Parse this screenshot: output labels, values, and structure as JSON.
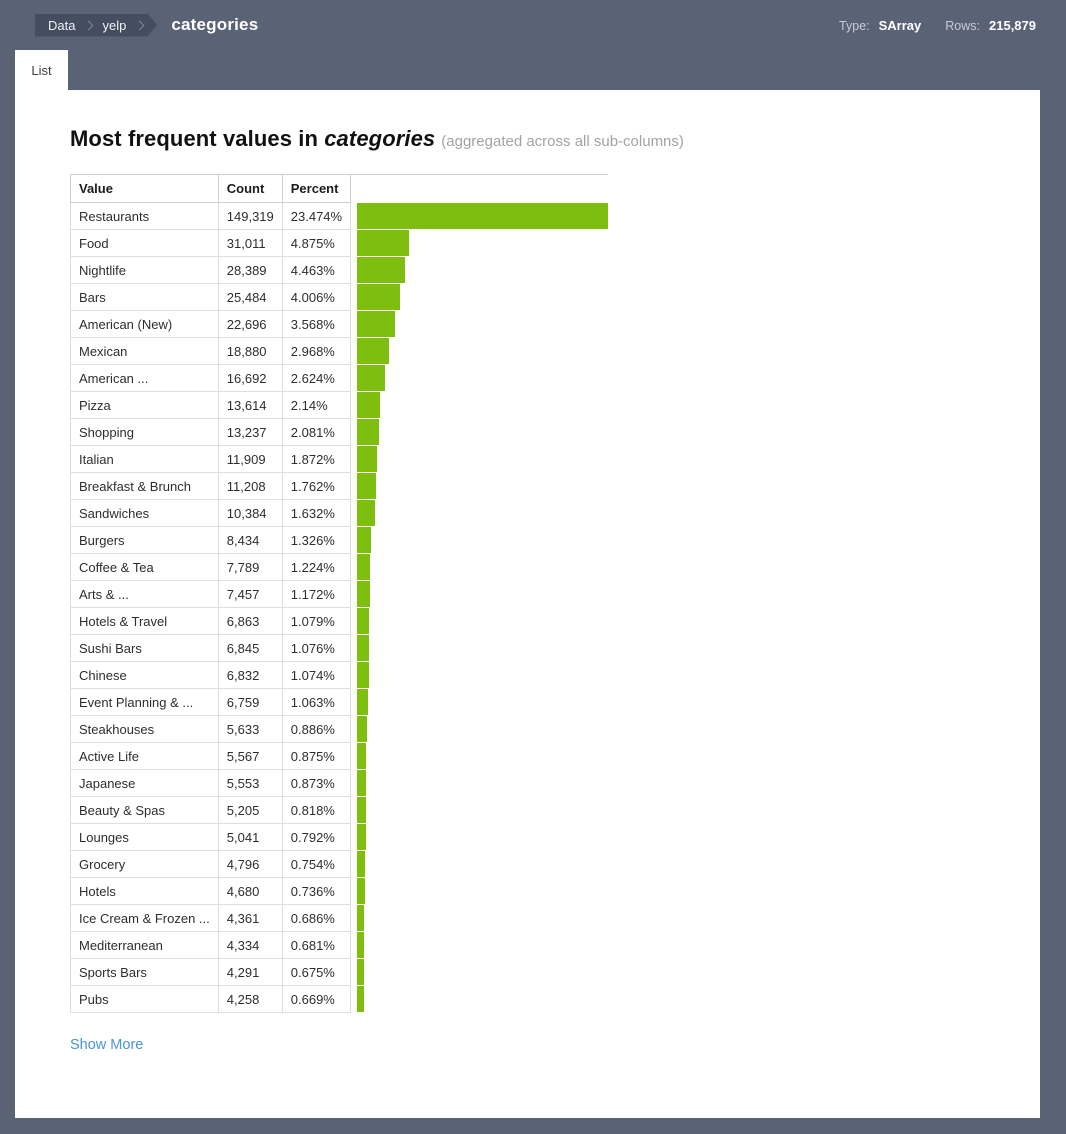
{
  "header": {
    "breadcrumbs": [
      "Data",
      "yelp"
    ],
    "current": "categories",
    "type_label": "Type:",
    "type_value": "SArray",
    "rows_label": "Rows:",
    "rows_value": "215,879"
  },
  "tabs": [
    {
      "label": "List"
    }
  ],
  "main": {
    "title_prefix": "Most frequent values in ",
    "title_column": "categories",
    "title_note": "(aggregated across all sub-columns)",
    "show_more_label": "Show More"
  },
  "colors": {
    "header_bg": "#5a6276",
    "crumb_bg": "#454d60",
    "bar_green": "#7dbe0e",
    "link_blue": "#4a94d9"
  },
  "table": {
    "columns": [
      "Value",
      "Count",
      "Percent"
    ],
    "rows": [
      {
        "value": "Restaurants",
        "count": "149,319",
        "percent": "23.474%"
      },
      {
        "value": "Food",
        "count": "31,011",
        "percent": "4.875%"
      },
      {
        "value": "Nightlife",
        "count": "28,389",
        "percent": "4.463%"
      },
      {
        "value": "Bars",
        "count": "25,484",
        "percent": "4.006%"
      },
      {
        "value": "American (New)",
        "count": "22,696",
        "percent": "3.568%"
      },
      {
        "value": "Mexican",
        "count": "18,880",
        "percent": "2.968%"
      },
      {
        "value": "American ...",
        "count": "16,692",
        "percent": "2.624%"
      },
      {
        "value": "Pizza",
        "count": "13,614",
        "percent": "2.14%"
      },
      {
        "value": "Shopping",
        "count": "13,237",
        "percent": "2.081%"
      },
      {
        "value": "Italian",
        "count": "11,909",
        "percent": "1.872%"
      },
      {
        "value": "Breakfast & Brunch",
        "count": "11,208",
        "percent": "1.762%"
      },
      {
        "value": "Sandwiches",
        "count": "10,384",
        "percent": "1.632%"
      },
      {
        "value": "Burgers",
        "count": "8,434",
        "percent": "1.326%"
      },
      {
        "value": "Coffee & Tea",
        "count": "7,789",
        "percent": "1.224%"
      },
      {
        "value": "Arts & ...",
        "count": "7,457",
        "percent": "1.172%"
      },
      {
        "value": "Hotels & Travel",
        "count": "6,863",
        "percent": "1.079%"
      },
      {
        "value": "Sushi Bars",
        "count": "6,845",
        "percent": "1.076%"
      },
      {
        "value": "Chinese",
        "count": "6,832",
        "percent": "1.074%"
      },
      {
        "value": "Event Planning & ...",
        "count": "6,759",
        "percent": "1.063%"
      },
      {
        "value": "Steakhouses",
        "count": "5,633",
        "percent": "0.886%"
      },
      {
        "value": "Active Life",
        "count": "5,567",
        "percent": "0.875%"
      },
      {
        "value": "Japanese",
        "count": "5,553",
        "percent": "0.873%"
      },
      {
        "value": "Beauty & Spas",
        "count": "5,205",
        "percent": "0.818%"
      },
      {
        "value": "Lounges",
        "count": "5,041",
        "percent": "0.792%"
      },
      {
        "value": "Grocery",
        "count": "4,796",
        "percent": "0.754%"
      },
      {
        "value": "Hotels",
        "count": "4,680",
        "percent": "0.736%"
      },
      {
        "value": "Ice Cream & Frozen ...",
        "count": "4,361",
        "percent": "0.686%"
      },
      {
        "value": "Mediterranean",
        "count": "4,334",
        "percent": "0.681%"
      },
      {
        "value": "Sports Bars",
        "count": "4,291",
        "percent": "0.675%"
      },
      {
        "value": "Pubs",
        "count": "4,258",
        "percent": "0.669%"
      }
    ]
  },
  "chart_data": {
    "type": "bar",
    "orientation": "horizontal",
    "title": "Most frequent values in categories (aggregated across all sub-columns)",
    "categories": [
      "Restaurants",
      "Food",
      "Nightlife",
      "Bars",
      "American (New)",
      "Mexican",
      "American ...",
      "Pizza",
      "Shopping",
      "Italian",
      "Breakfast & Brunch",
      "Sandwiches",
      "Burgers",
      "Coffee & Tea",
      "Arts & ...",
      "Hotels & Travel",
      "Sushi Bars",
      "Chinese",
      "Event Planning & ...",
      "Steakhouses",
      "Active Life",
      "Japanese",
      "Beauty & Spas",
      "Lounges",
      "Grocery",
      "Hotels",
      "Ice Cream & Frozen ...",
      "Mediterranean",
      "Sports Bars",
      "Pubs"
    ],
    "series": [
      {
        "name": "Count",
        "values": [
          149319,
          31011,
          28389,
          25484,
          22696,
          18880,
          16692,
          13614,
          13237,
          11909,
          11208,
          10384,
          8434,
          7789,
          7457,
          6863,
          6845,
          6832,
          6759,
          5633,
          5567,
          5553,
          5205,
          5041,
          4796,
          4680,
          4361,
          4334,
          4291,
          4258
        ]
      },
      {
        "name": "Percent",
        "values": [
          23.474,
          4.875,
          4.463,
          4.006,
          3.568,
          2.968,
          2.624,
          2.14,
          2.081,
          1.872,
          1.762,
          1.632,
          1.326,
          1.224,
          1.172,
          1.079,
          1.076,
          1.074,
          1.063,
          0.886,
          0.875,
          0.873,
          0.818,
          0.792,
          0.754,
          0.736,
          0.686,
          0.681,
          0.675,
          0.669
        ]
      }
    ],
    "xlim": [
      0,
      23.474
    ],
    "bar_color": "#7dbe0e",
    "legend": false,
    "grid": false
  }
}
